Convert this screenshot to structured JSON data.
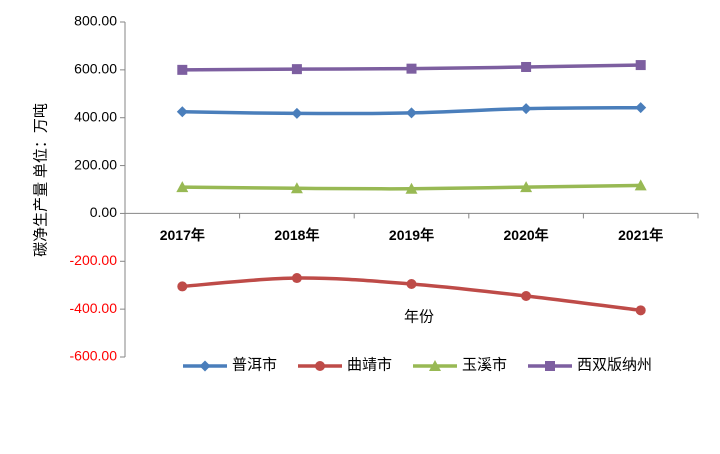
{
  "chart_data": {
    "type": "line",
    "y_label": "碳净生产量 单位：万吨",
    "x_label": "年份",
    "categories": [
      "2017年",
      "2018年",
      "2019年",
      "2020年",
      "2021年"
    ],
    "series": [
      {
        "name": "普洱市",
        "color": "#4a7ebb",
        "marker": "diamond",
        "values": [
          425,
          418,
          420,
          438,
          442
        ]
      },
      {
        "name": "曲靖市",
        "color": "#be4b48",
        "marker": "circle",
        "values": [
          -305,
          -270,
          -295,
          -345,
          -405
        ]
      },
      {
        "name": "玉溪市",
        "color": "#98b954",
        "marker": "triangle",
        "values": [
          110,
          105,
          103,
          110,
          117
        ]
      },
      {
        "name": "西双版纳州",
        "color": "#7d5fa0",
        "marker": "square",
        "values": [
          600,
          603,
          605,
          612,
          620
        ]
      }
    ],
    "ylim": [
      -600,
      800
    ],
    "yticks": [
      {
        "value": -600,
        "label": "-600.00"
      },
      {
        "value": -400,
        "label": "-400.00"
      },
      {
        "value": -200,
        "label": "-200.00"
      },
      {
        "value": 0,
        "label": "0.00"
      },
      {
        "value": 200,
        "label": "200.00"
      },
      {
        "value": 400,
        "label": "400.00"
      },
      {
        "value": 600,
        "label": "600.00"
      },
      {
        "value": 800,
        "label": "800.00"
      }
    ],
    "negative_tick_color": "#ff0000",
    "smooth": true,
    "legend": "bottom"
  }
}
